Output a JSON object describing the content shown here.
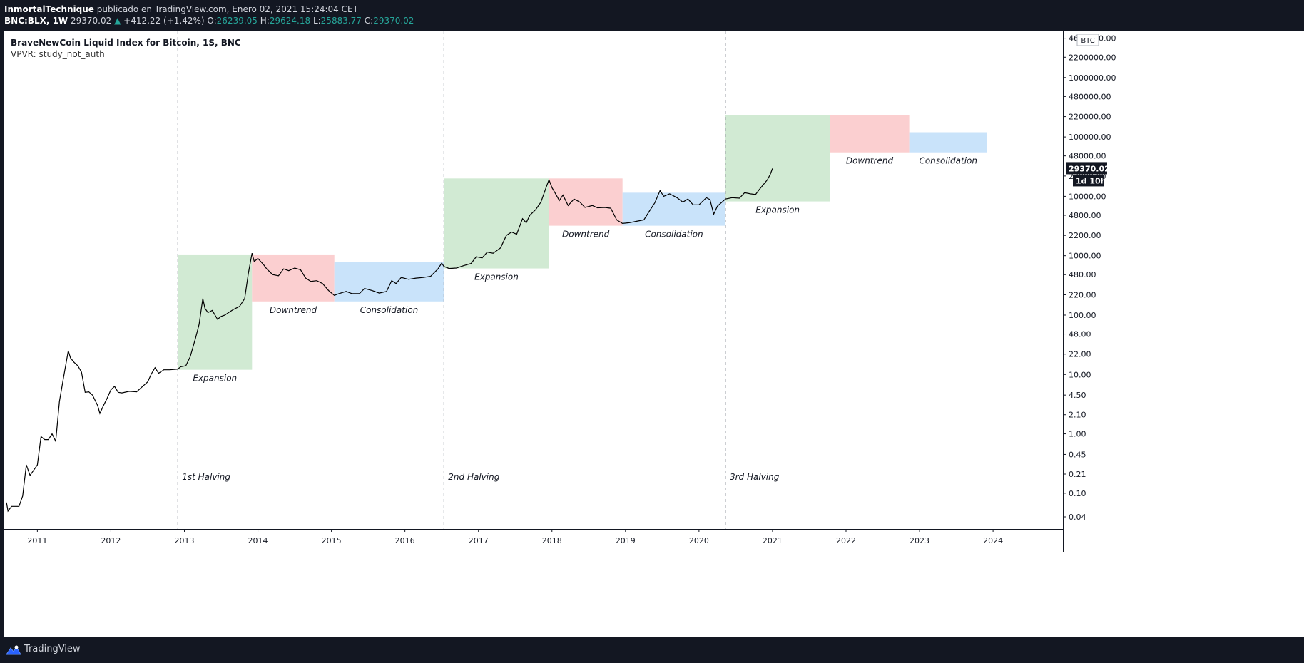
{
  "header": {
    "author": "InmortalTechnique",
    "published_text": "publicado en TradingView.com, Enero 02, 2021 15:24:04 CET",
    "symbol": "BNC:BLX, 1W",
    "last": "29370.02",
    "change_arrow": "▲",
    "change": "+412.22 (+1.42%)",
    "open_label": "O:",
    "open": "26239.05",
    "high_label": "H:",
    "high": "29624.18",
    "low_label": "L:",
    "low": "25883.77",
    "close_label": "C:",
    "close": "29370.02"
  },
  "legend": {
    "title": "BraveNewCoin Liquid Index for Bitcoin, 1S, BNC",
    "study": "VPVR: study_not_auth"
  },
  "price_badge": {
    "value": "29370.02",
    "countdown": "1d 10h",
    "currency": "BTC"
  },
  "footer": {
    "brand": "TradingView"
  },
  "colors": {
    "expansion": "#d1ead3",
    "downtrend": "#fbcfd0",
    "consolidation": "#c9e3fa",
    "line": "#000000",
    "background": "#131722"
  },
  "chart_data": {
    "type": "line",
    "title": "BraveNewCoin Liquid Index for Bitcoin, 1S, BNC",
    "y_scale": "log",
    "ylim": [
      0.025,
      6000000
    ],
    "xlim": [
      2010.55,
      2024.95
    ],
    "y_ticks": [
      "4600000.00",
      "2200000.00",
      "1000000.00",
      "480000.00",
      "220000.00",
      "100000.00",
      "48000.00",
      "22000.00",
      "10000.00",
      "4800.00",
      "2200.00",
      "1000.00",
      "480.00",
      "220.00",
      "100.00",
      "48.00",
      "22.00",
      "10.00",
      "4.50",
      "2.10",
      "1.00",
      "0.45",
      "0.21",
      "0.10",
      "0.04"
    ],
    "x_ticks": [
      "2011",
      "2012",
      "2013",
      "2014",
      "2015",
      "2016",
      "2017",
      "2018",
      "2019",
      "2020",
      "2021",
      "2022",
      "2023",
      "2024"
    ],
    "halvings": [
      {
        "label": "1st Halving",
        "x": 2012.91
      },
      {
        "label": "2nd Halving",
        "x": 2016.53
      },
      {
        "label": "3rd Halving",
        "x": 2020.36
      }
    ],
    "zones": [
      {
        "type": "expansion",
        "label": "Expansion",
        "x0": 2012.91,
        "x1": 2013.92,
        "y0": 12,
        "y1": 1050
      },
      {
        "type": "downtrend",
        "label": "Downtrend",
        "x0": 2013.92,
        "x1": 2015.04,
        "y0": 170,
        "y1": 1050
      },
      {
        "type": "consolidation",
        "label": "Consolidation",
        "x0": 2015.04,
        "x1": 2016.53,
        "y0": 170,
        "y1": 780
      },
      {
        "type": "expansion",
        "label": "Expansion",
        "x0": 2016.53,
        "x1": 2017.96,
        "y0": 610,
        "y1": 20000
      },
      {
        "type": "downtrend",
        "label": "Downtrend",
        "x0": 2017.96,
        "x1": 2018.96,
        "y0": 3200,
        "y1": 20000
      },
      {
        "type": "consolidation",
        "label": "Consolidation",
        "x0": 2018.96,
        "x1": 2020.36,
        "y0": 3200,
        "y1": 11500
      },
      {
        "type": "expansion",
        "label": "Expansion",
        "x0": 2020.36,
        "x1": 2021.78,
        "y0": 8200,
        "y1": 235000
      },
      {
        "type": "downtrend",
        "label": "Downtrend",
        "x0": 2021.78,
        "x1": 2022.86,
        "y0": 55000,
        "y1": 235000
      },
      {
        "type": "consolidation",
        "label": "Consolidation",
        "x0": 2022.86,
        "x1": 2023.92,
        "y0": 55000,
        "y1": 120000
      }
    ],
    "series": [
      {
        "name": "BLX",
        "points": [
          [
            2010.58,
            0.07
          ],
          [
            2010.6,
            0.05
          ],
          [
            2010.65,
            0.06
          ],
          [
            2010.75,
            0.06
          ],
          [
            2010.8,
            0.09
          ],
          [
            2010.85,
            0.3
          ],
          [
            2010.9,
            0.2
          ],
          [
            2011.0,
            0.3
          ],
          [
            2011.05,
            0.9
          ],
          [
            2011.1,
            0.8
          ],
          [
            2011.15,
            0.8
          ],
          [
            2011.2,
            1.0
          ],
          [
            2011.25,
            0.75
          ],
          [
            2011.3,
            3.5
          ],
          [
            2011.35,
            8.0
          ],
          [
            2011.42,
            25.0
          ],
          [
            2011.45,
            19.0
          ],
          [
            2011.5,
            16.0
          ],
          [
            2011.55,
            14.0
          ],
          [
            2011.6,
            11.0
          ],
          [
            2011.65,
            5.0
          ],
          [
            2011.7,
            5.1
          ],
          [
            2011.75,
            4.5
          ],
          [
            2011.82,
            3.0
          ],
          [
            2011.85,
            2.2
          ],
          [
            2011.9,
            3.0
          ],
          [
            2011.95,
            4.0
          ],
          [
            2012.0,
            5.5
          ],
          [
            2012.05,
            6.3
          ],
          [
            2012.1,
            5.0
          ],
          [
            2012.15,
            4.9
          ],
          [
            2012.25,
            5.2
          ],
          [
            2012.35,
            5.1
          ],
          [
            2012.45,
            6.6
          ],
          [
            2012.5,
            7.5
          ],
          [
            2012.55,
            10.2
          ],
          [
            2012.6,
            13.0
          ],
          [
            2012.65,
            10.5
          ],
          [
            2012.72,
            12.0
          ],
          [
            2012.8,
            12.0
          ],
          [
            2012.91,
            12.3
          ],
          [
            2012.95,
            13.5
          ],
          [
            2013.02,
            14.0
          ],
          [
            2013.08,
            20.0
          ],
          [
            2013.15,
            40.0
          ],
          [
            2013.2,
            70.0
          ],
          [
            2013.25,
            190.0
          ],
          [
            2013.28,
            130.0
          ],
          [
            2013.32,
            110.0
          ],
          [
            2013.38,
            120.0
          ],
          [
            2013.45,
            85.0
          ],
          [
            2013.5,
            95.0
          ],
          [
            2013.55,
            100.0
          ],
          [
            2013.6,
            110.0
          ],
          [
            2013.67,
            125.0
          ],
          [
            2013.75,
            140.0
          ],
          [
            2013.82,
            190.0
          ],
          [
            2013.87,
            500.0
          ],
          [
            2013.92,
            1100.0
          ],
          [
            2013.95,
            800.0
          ],
          [
            2014.0,
            900.0
          ],
          [
            2014.08,
            700.0
          ],
          [
            2014.12,
            600.0
          ],
          [
            2014.2,
            480.0
          ],
          [
            2014.28,
            460.0
          ],
          [
            2014.35,
            600.0
          ],
          [
            2014.42,
            560.0
          ],
          [
            2014.5,
            620.0
          ],
          [
            2014.58,
            580.0
          ],
          [
            2014.65,
            420.0
          ],
          [
            2014.72,
            370.0
          ],
          [
            2014.8,
            380.0
          ],
          [
            2014.88,
            340.0
          ],
          [
            2014.96,
            260.0
          ],
          [
            2015.04,
            215.0
          ],
          [
            2015.1,
            230.0
          ],
          [
            2015.2,
            250.0
          ],
          [
            2015.28,
            230.0
          ],
          [
            2015.38,
            230.0
          ],
          [
            2015.45,
            280.0
          ],
          [
            2015.55,
            260.0
          ],
          [
            2015.65,
            235.0
          ],
          [
            2015.75,
            250.0
          ],
          [
            2015.82,
            380.0
          ],
          [
            2015.88,
            340.0
          ],
          [
            2015.95,
            430.0
          ],
          [
            2016.05,
            400.0
          ],
          [
            2016.15,
            420.0
          ],
          [
            2016.25,
            430.0
          ],
          [
            2016.35,
            450.0
          ],
          [
            2016.45,
            600.0
          ],
          [
            2016.5,
            750.0
          ],
          [
            2016.53,
            660.0
          ],
          [
            2016.6,
            610.0
          ],
          [
            2016.7,
            620.0
          ],
          [
            2016.8,
            680.0
          ],
          [
            2016.9,
            740.0
          ],
          [
            2016.97,
            960.0
          ],
          [
            2017.05,
            920.0
          ],
          [
            2017.12,
            1150.0
          ],
          [
            2017.2,
            1100.0
          ],
          [
            2017.3,
            1350.0
          ],
          [
            2017.38,
            2200.0
          ],
          [
            2017.45,
            2500.0
          ],
          [
            2017.52,
            2300.0
          ],
          [
            2017.6,
            4200.0
          ],
          [
            2017.65,
            3600.0
          ],
          [
            2017.7,
            4800.0
          ],
          [
            2017.78,
            6000.0
          ],
          [
            2017.85,
            8000.0
          ],
          [
            2017.92,
            14000.0
          ],
          [
            2017.96,
            19000.0
          ],
          [
            2018.0,
            14000.0
          ],
          [
            2018.05,
            11000.0
          ],
          [
            2018.1,
            8500.0
          ],
          [
            2018.15,
            10500.0
          ],
          [
            2018.22,
            7000.0
          ],
          [
            2018.3,
            9000.0
          ],
          [
            2018.38,
            8000.0
          ],
          [
            2018.45,
            6500.0
          ],
          [
            2018.55,
            7000.0
          ],
          [
            2018.62,
            6400.0
          ],
          [
            2018.72,
            6500.0
          ],
          [
            2018.8,
            6300.0
          ],
          [
            2018.88,
            4000.0
          ],
          [
            2018.96,
            3500.0
          ],
          [
            2019.05,
            3600.0
          ],
          [
            2019.15,
            3800.0
          ],
          [
            2019.25,
            4000.0
          ],
          [
            2019.32,
            5500.0
          ],
          [
            2019.4,
            7800.0
          ],
          [
            2019.47,
            12500.0
          ],
          [
            2019.52,
            10000.0
          ],
          [
            2019.6,
            11000.0
          ],
          [
            2019.7,
            9500.0
          ],
          [
            2019.78,
            8000.0
          ],
          [
            2019.85,
            9000.0
          ],
          [
            2019.92,
            7200.0
          ],
          [
            2020.0,
            7200.0
          ],
          [
            2020.1,
            9500.0
          ],
          [
            2020.15,
            8800.0
          ],
          [
            2020.2,
            5000.0
          ],
          [
            2020.25,
            6800.0
          ],
          [
            2020.36,
            9000.0
          ],
          [
            2020.45,
            9500.0
          ],
          [
            2020.55,
            9300.0
          ],
          [
            2020.62,
            11500.0
          ],
          [
            2020.7,
            11000.0
          ],
          [
            2020.77,
            10700.0
          ],
          [
            2020.82,
            13000.0
          ],
          [
            2020.88,
            16000.0
          ],
          [
            2020.93,
            19000.0
          ],
          [
            2020.97,
            23500.0
          ],
          [
            2021.0,
            29370.02
          ]
        ]
      }
    ],
    "last_value": 29370.02,
    "annotations": [
      "Expansion",
      "Downtrend",
      "Consolidation",
      "1st Halving",
      "2nd Halving",
      "3rd Halving"
    ]
  }
}
